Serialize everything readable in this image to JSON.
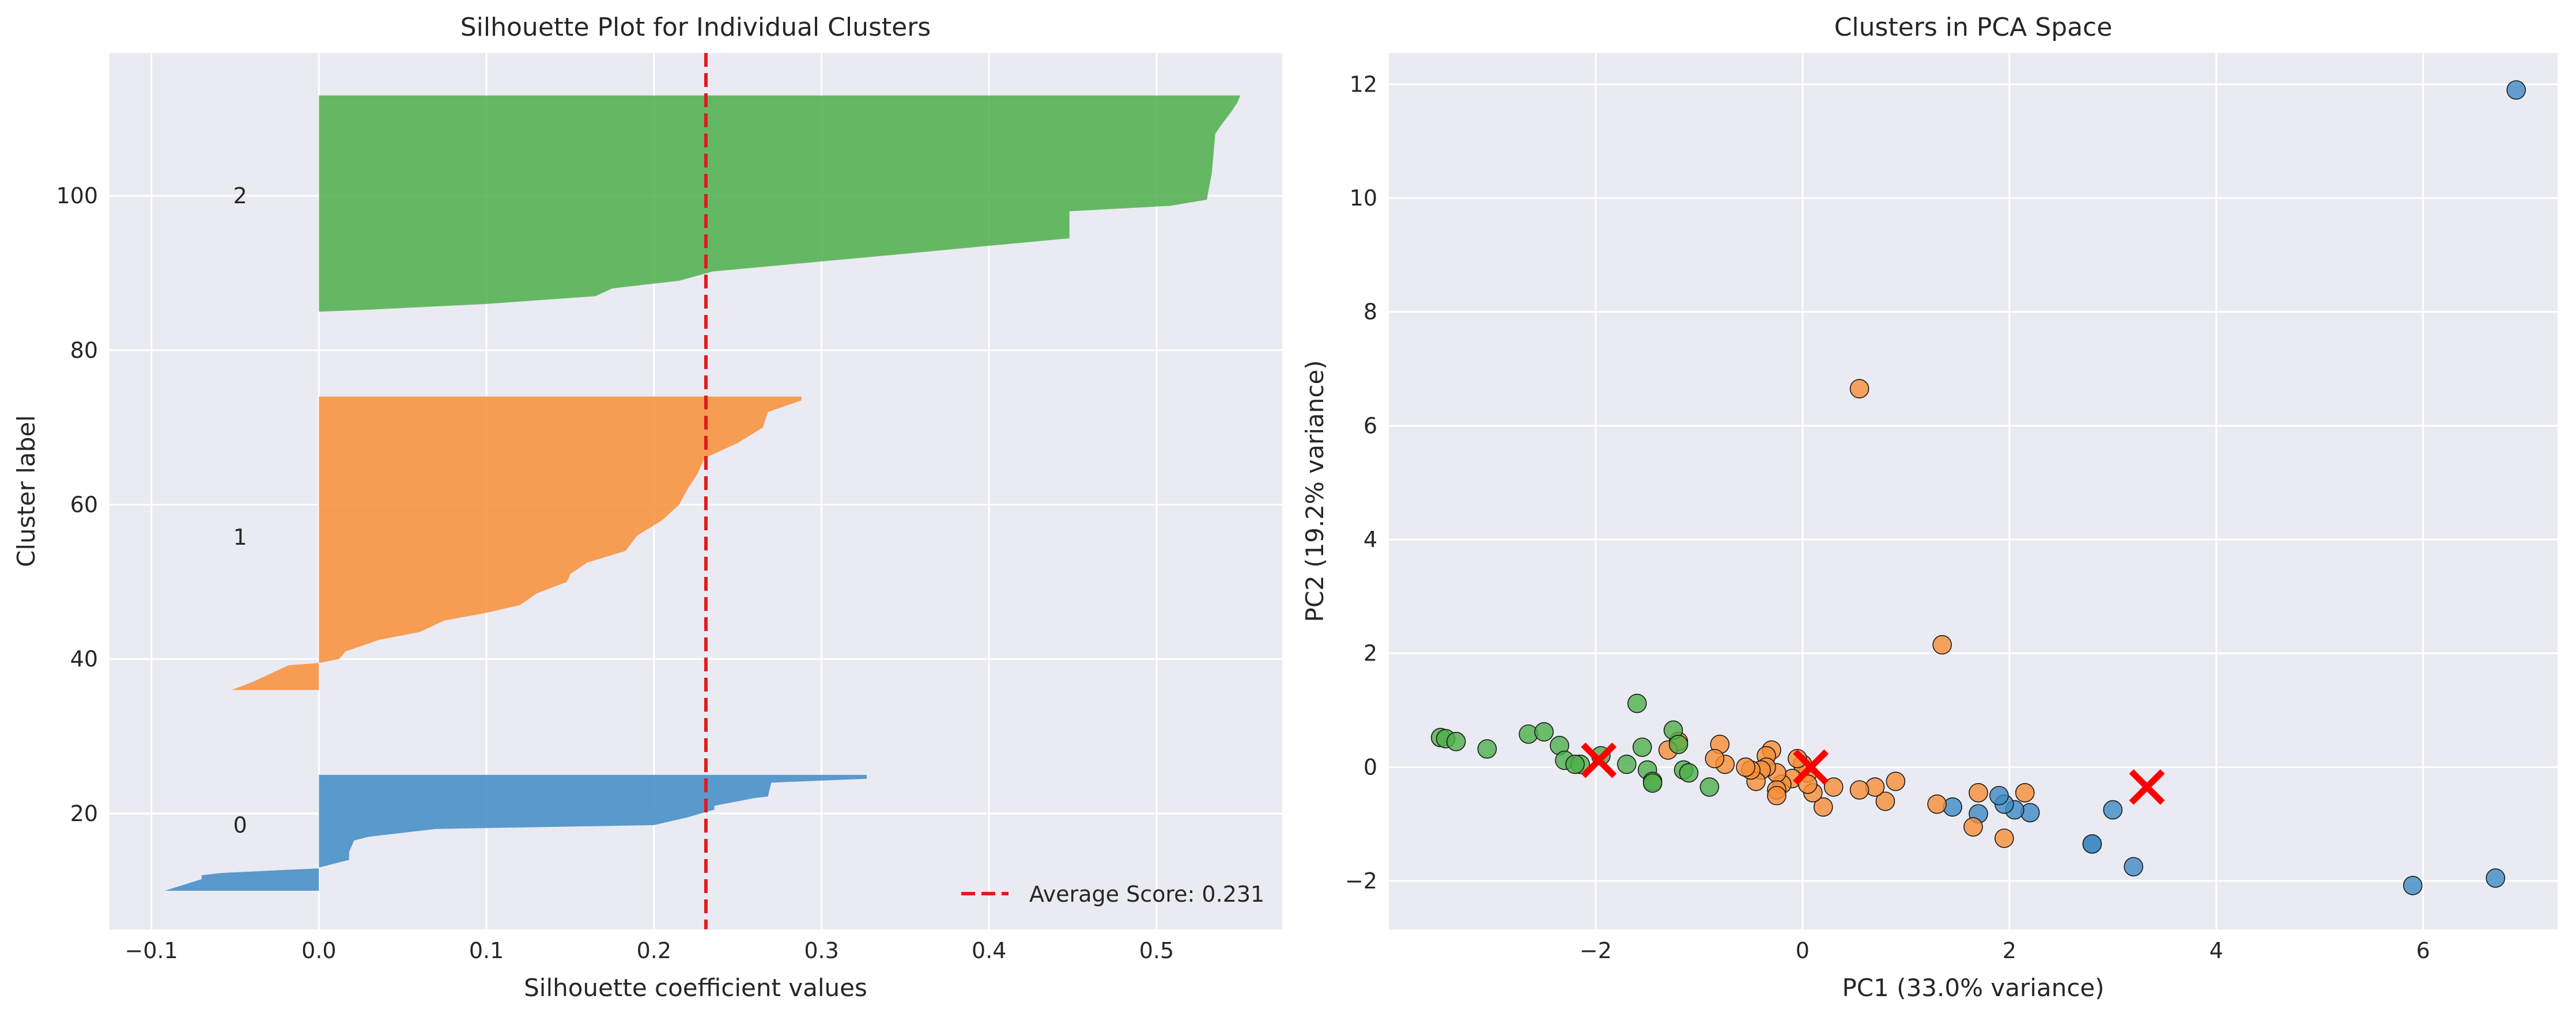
{
  "chart_data": [
    {
      "type": "area",
      "title": "Silhouette Plot for Individual Clusters",
      "xlabel": "Silhouette coefficient values",
      "ylabel": "Cluster label",
      "xlim": [
        -0.125,
        0.575
      ],
      "ylim": [
        5,
        118.5
      ],
      "xticks": [
        -0.1,
        0.0,
        0.1,
        0.2,
        0.3,
        0.4,
        0.5
      ],
      "xtick_labels": [
        "−0.1",
        "0.0",
        "0.1",
        "0.2",
        "0.3",
        "0.4",
        "0.5"
      ],
      "yticks": [
        20,
        40,
        60,
        80,
        100
      ],
      "ytick_labels": [
        "20",
        "40",
        "60",
        "80",
        "100"
      ],
      "grid": true,
      "legend_position": "bottom-right",
      "average_line": {
        "x": 0.231,
        "color": "#e31a1c",
        "label": "Average Score: 0.231"
      },
      "series": [
        {
          "cluster_label": "0",
          "color": "#3f8bc4",
          "label_y": 18.5,
          "points": [
            [
              -0.092,
              10
            ],
            [
              -0.07,
              11.5
            ],
            [
              -0.07,
              12
            ],
            [
              -0.058,
              12.3
            ],
            [
              0.0,
              12.9
            ],
            [
              0.0,
              13
            ],
            [
              0.018,
              14
            ],
            [
              0.018,
              15
            ],
            [
              0.021,
              16.5
            ],
            [
              0.03,
              17
            ],
            [
              0.07,
              18
            ],
            [
              0.2,
              18.5
            ],
            [
              0.22,
              19.5
            ],
            [
              0.236,
              20.5
            ],
            [
              0.236,
              21
            ],
            [
              0.26,
              22
            ],
            [
              0.268,
              22.2
            ],
            [
              0.27,
              24
            ],
            [
              0.327,
              24.5
            ],
            [
              0.327,
              25
            ]
          ]
        },
        {
          "cluster_label": "1",
          "color": "#f88e37",
          "label_y": 55.8,
          "points": [
            [
              -0.052,
              36
            ],
            [
              -0.04,
              37
            ],
            [
              -0.025,
              38.5
            ],
            [
              -0.018,
              39.2
            ],
            [
              0.0,
              39.5
            ],
            [
              0.012,
              40
            ],
            [
              0.016,
              41
            ],
            [
              0.036,
              42.5
            ],
            [
              0.06,
              43.5
            ],
            [
              0.075,
              45
            ],
            [
              0.1,
              46
            ],
            [
              0.12,
              47
            ],
            [
              0.13,
              48.5
            ],
            [
              0.148,
              50
            ],
            [
              0.15,
              51
            ],
            [
              0.16,
              52.5
            ],
            [
              0.183,
              54
            ],
            [
              0.19,
              56
            ],
            [
              0.205,
              58
            ],
            [
              0.215,
              60
            ],
            [
              0.22,
              62
            ],
            [
              0.226,
              64
            ],
            [
              0.23,
              66
            ],
            [
              0.25,
              68
            ],
            [
              0.265,
              70
            ],
            [
              0.268,
              72
            ],
            [
              0.288,
              73.5
            ],
            [
              0.288,
              74
            ]
          ]
        },
        {
          "cluster_label": "2",
          "color": "#4daf4a",
          "label_y": 100,
          "points": [
            [
              0.0,
              85
            ],
            [
              0.025,
              85.2
            ],
            [
              0.1,
              86
            ],
            [
              0.165,
              87
            ],
            [
              0.175,
              88
            ],
            [
              0.215,
              89
            ],
            [
              0.235,
              90.2
            ],
            [
              0.3,
              91.5
            ],
            [
              0.325,
              92
            ],
            [
              0.448,
              94.5
            ],
            [
              0.448,
              98
            ],
            [
              0.508,
              98.7
            ],
            [
              0.53,
              99.5
            ],
            [
              0.533,
              103
            ],
            [
              0.535,
              108
            ],
            [
              0.538,
              109
            ],
            [
              0.545,
              111
            ],
            [
              0.548,
              112
            ],
            [
              0.55,
              113
            ]
          ]
        }
      ]
    },
    {
      "type": "scatter",
      "title": "Clusters in PCA Space",
      "xlabel": "PC1 (33.0% variance)",
      "ylabel": "PC2 (19.2% variance)",
      "xlim": [
        -4.0,
        7.3
      ],
      "ylim": [
        -2.85,
        12.55
      ],
      "xticks": [
        -2,
        0,
        2,
        4,
        6
      ],
      "xtick_labels": [
        "−2",
        "0",
        "2",
        "4",
        "6"
      ],
      "yticks": [
        -2,
        0,
        2,
        4,
        6,
        8,
        10,
        12
      ],
      "ytick_labels": [
        "−2",
        "0",
        "2",
        "4",
        "6",
        "8",
        "10",
        "12"
      ],
      "grid": true,
      "series": [
        {
          "cluster_label": "0",
          "color": "#3f8bc4",
          "points": [
            [
              6.9,
              11.9
            ],
            [
              6.7,
              -1.95
            ],
            [
              5.9,
              -2.08
            ],
            [
              3.2,
              -1.75
            ],
            [
              2.8,
              -1.35
            ],
            [
              2.8,
              -1.35
            ],
            [
              3.0,
              -0.75
            ],
            [
              2.2,
              -0.8
            ],
            [
              2.05,
              -0.75
            ],
            [
              1.95,
              -0.65
            ],
            [
              1.9,
              -0.5
            ],
            [
              1.7,
              -0.82
            ],
            [
              1.45,
              -0.7
            ]
          ]
        },
        {
          "cluster_label": "1",
          "color": "#f88e37",
          "points": [
            [
              0.55,
              6.65
            ],
            [
              1.35,
              2.15
            ],
            [
              2.15,
              -0.45
            ],
            [
              1.95,
              -1.25
            ],
            [
              1.65,
              -1.05
            ],
            [
              1.7,
              -0.45
            ],
            [
              1.3,
              -0.65
            ],
            [
              0.9,
              -0.25
            ],
            [
              0.8,
              -0.6
            ],
            [
              0.7,
              -0.35
            ],
            [
              0.55,
              -0.4
            ],
            [
              0.3,
              -0.35
            ],
            [
              0.2,
              -0.7
            ],
            [
              0.1,
              -0.45
            ],
            [
              0.05,
              -0.1
            ],
            [
              0.0,
              0.05
            ],
            [
              -0.05,
              0.15
            ],
            [
              -0.1,
              -0.2
            ],
            [
              -0.2,
              -0.3
            ],
            [
              -0.25,
              -0.1
            ],
            [
              -0.25,
              -0.4
            ],
            [
              -0.3,
              0.3
            ],
            [
              -0.35,
              0.2
            ],
            [
              -0.35,
              0.0
            ],
            [
              -0.4,
              -0.05
            ],
            [
              -0.45,
              -0.25
            ],
            [
              -0.5,
              -0.05
            ],
            [
              -0.55,
              0.0
            ],
            [
              -0.75,
              0.05
            ],
            [
              -0.8,
              0.4
            ],
            [
              -0.85,
              0.15
            ],
            [
              -1.2,
              0.45
            ],
            [
              -1.3,
              0.3
            ],
            [
              -0.25,
              -0.5
            ],
            [
              0.05,
              -0.3
            ]
          ]
        },
        {
          "cluster_label": "2",
          "color": "#4daf4a",
          "points": [
            [
              -3.5,
              0.52
            ],
            [
              -3.45,
              0.5
            ],
            [
              -3.35,
              0.45
            ],
            [
              -3.05,
              0.32
            ],
            [
              -2.65,
              0.58
            ],
            [
              -2.5,
              0.62
            ],
            [
              -2.35,
              0.38
            ],
            [
              -2.3,
              0.12
            ],
            [
              -2.15,
              0.05
            ],
            [
              -1.95,
              0.2
            ],
            [
              -1.7,
              0.05
            ],
            [
              -1.6,
              1.12
            ],
            [
              -1.55,
              0.35
            ],
            [
              -1.5,
              -0.05
            ],
            [
              -1.45,
              -0.25
            ],
            [
              -1.45,
              -0.28
            ],
            [
              -1.25,
              0.65
            ],
            [
              -1.2,
              0.4
            ],
            [
              -1.15,
              -0.05
            ],
            [
              -1.1,
              -0.1
            ],
            [
              -0.9,
              -0.35
            ],
            [
              -2.2,
              0.05
            ]
          ]
        }
      ],
      "centroids": {
        "color": "#ff0000",
        "points": [
          [
            -1.97,
            0.12
          ],
          [
            0.08,
            0.0
          ],
          [
            3.33,
            -0.35
          ]
        ]
      }
    }
  ]
}
